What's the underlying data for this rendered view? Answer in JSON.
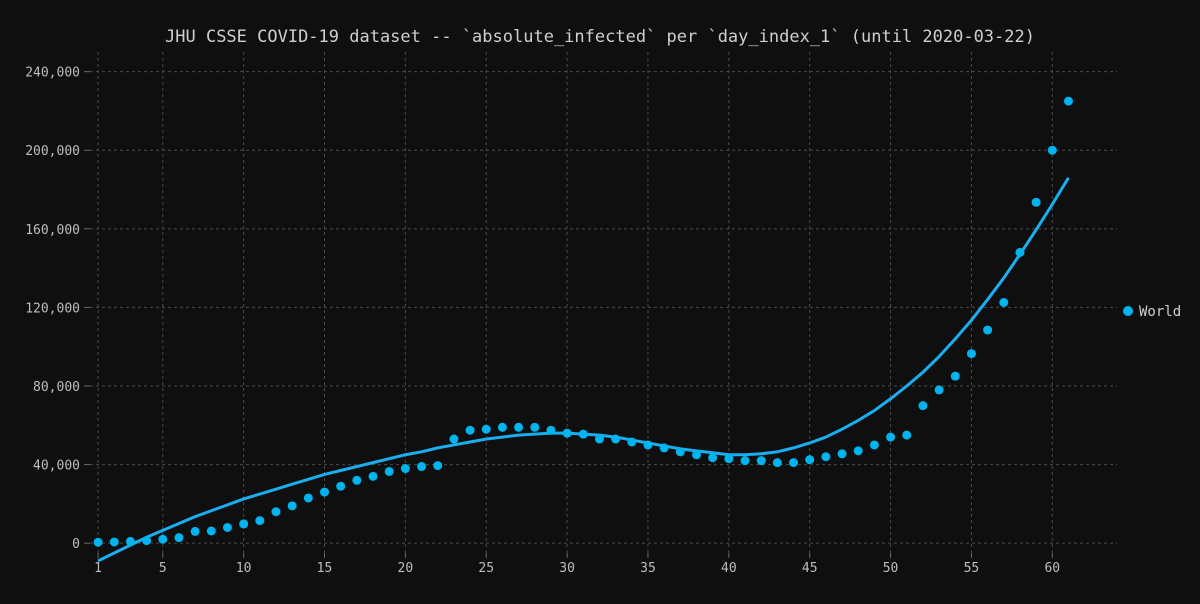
{
  "chart_data": {
    "type": "scatter",
    "title": "JHU CSSE COVID-19 dataset -- `absolute_infected` per `day_index_1` (until 2020-03-22)",
    "xlabel": "",
    "ylabel": "",
    "xlim": [
      0.5,
      64
    ],
    "ylim": [
      -5000,
      250000
    ],
    "x_ticks": [
      1,
      5,
      10,
      15,
      20,
      25,
      30,
      35,
      40,
      45,
      50,
      55,
      60
    ],
    "x_tick_labels": [
      "1",
      "5",
      "10",
      "15",
      "20",
      "25",
      "30",
      "35",
      "40",
      "45",
      "50",
      "55",
      "60"
    ],
    "y_ticks": [
      0,
      40000,
      80000,
      120000,
      160000,
      200000,
      240000
    ],
    "y_tick_labels": [
      "0",
      "40,000",
      "80,000",
      "120,000",
      "160,000",
      "200,000",
      "240,000"
    ],
    "grid": true,
    "legend": "right",
    "series": [
      {
        "name": "World",
        "color": "#00b4f0",
        "x": [
          1,
          2,
          3,
          4,
          5,
          6,
          7,
          8,
          9,
          10,
          11,
          12,
          13,
          14,
          15,
          16,
          17,
          18,
          19,
          20,
          21,
          22,
          23,
          24,
          25,
          26,
          27,
          28,
          29,
          30,
          31,
          32,
          33,
          34,
          35,
          36,
          37,
          38,
          39,
          40,
          41,
          42,
          43,
          44,
          45,
          46,
          47,
          48,
          49,
          50,
          51,
          52,
          53,
          54,
          55,
          56,
          57,
          58,
          59,
          60,
          61
        ],
        "y": [
          500,
          600,
          900,
          1300,
          2000,
          2800,
          6000,
          6200,
          8000,
          9800,
          11500,
          16000,
          19000,
          23000,
          26000,
          29000,
          32000,
          34000,
          36500,
          38000,
          39000,
          39500,
          53000,
          57500,
          58000,
          59000,
          59000,
          59000,
          57500,
          56000,
          55500,
          53000,
          53000,
          51500,
          50000,
          48500,
          46500,
          45000,
          43500,
          43000,
          42000,
          42000,
          41000,
          41000,
          42500,
          44000,
          45500,
          47000,
          50000,
          54000,
          55000,
          70000,
          78000,
          85000,
          96500,
          108500,
          122500,
          148000,
          173500,
          200000,
          225000
        ]
      }
    ],
    "fit_line": {
      "color": "#1aaef0",
      "x": [
        1,
        2,
        3,
        4,
        5,
        6,
        7,
        8,
        9,
        10,
        11,
        12,
        13,
        14,
        15,
        16,
        17,
        18,
        19,
        20,
        21,
        22,
        23,
        24,
        25,
        26,
        27,
        28,
        29,
        30,
        31,
        32,
        33,
        34,
        35,
        36,
        37,
        38,
        39,
        40,
        41,
        42,
        43,
        44,
        45,
        46,
        47,
        48,
        49,
        50,
        51,
        52,
        53,
        54,
        55,
        56,
        57,
        58,
        59,
        60,
        61
      ],
      "y": [
        -9000,
        -5000,
        -1000,
        3000,
        6500,
        10000,
        13500,
        16500,
        19500,
        22500,
        25000,
        27500,
        30000,
        32500,
        35000,
        37000,
        39000,
        41000,
        43000,
        45000,
        46500,
        48500,
        50000,
        51500,
        53000,
        54000,
        55000,
        55500,
        56000,
        56000,
        55500,
        55000,
        54000,
        52500,
        51000,
        49500,
        48000,
        47000,
        46000,
        45000,
        45000,
        45500,
        46500,
        48500,
        51000,
        54000,
        58000,
        62500,
        67500,
        73500,
        80000,
        87000,
        95000,
        104000,
        113500,
        124000,
        135000,
        147000,
        159500,
        172500,
        186000
      ]
    }
  }
}
